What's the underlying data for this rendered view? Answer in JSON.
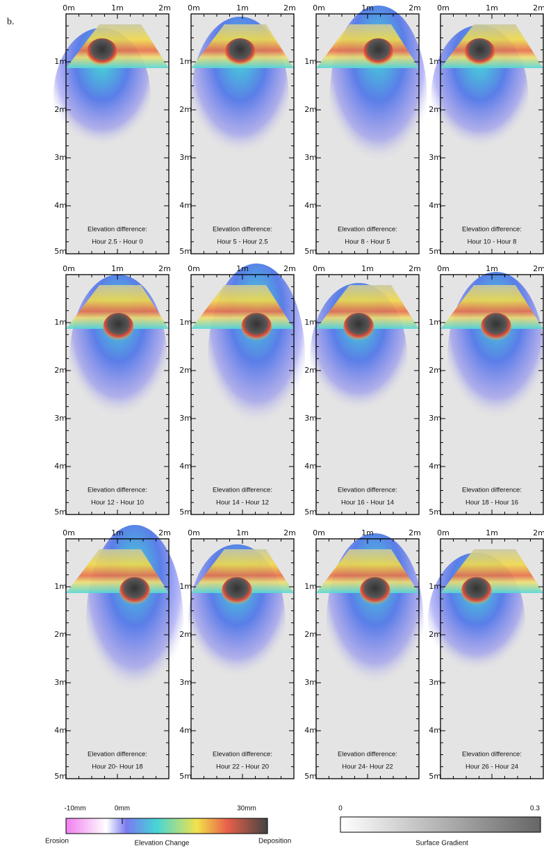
{
  "figure_label": "b.",
  "x_axis_labels": [
    "0m",
    "1m",
    "2m"
  ],
  "y_axis_labels": [
    "1m",
    "2m",
    "3m",
    "4m",
    "5m"
  ],
  "panels": [
    {
      "caption": "Elevation difference:",
      "interval": "Hour 2.5 - Hour 0"
    },
    {
      "caption": "Elevation difference:",
      "interval": "Hour 5 - Hour 2.5"
    },
    {
      "caption": "Elevation difference:",
      "interval": "Hour 8 - Hour 5"
    },
    {
      "caption": "Elevation difference:",
      "interval": "Hour 10 - Hour 8"
    },
    {
      "caption": "Elevation difference:",
      "interval": "Hour 12 - Hour 10"
    },
    {
      "caption": "Elevation difference:",
      "interval": "Hour 14 - Hour 12"
    },
    {
      "caption": "Elevation difference:",
      "interval": "Hour 16 - Hour 14"
    },
    {
      "caption": "Elevation difference:",
      "interval": "Hour 18 - Hour 16"
    },
    {
      "caption": "Elevation difference:",
      "interval": "Hour 20- Hour 18"
    },
    {
      "caption": "Elevation difference:",
      "interval": "Hour 22 - Hour 20"
    },
    {
      "caption": "Elevation difference:",
      "interval": "Hour 24- Hour 22"
    },
    {
      "caption": "Elevation difference:",
      "interval": "Hour 26 - Hour 24"
    }
  ],
  "elevation_legend": {
    "ticks": [
      "-10mm",
      "0mm",
      "30mm"
    ],
    "left_label": "Erosion",
    "title": "Elevation Change",
    "right_label": "Deposition"
  },
  "gradient_legend": {
    "ticks": [
      "0",
      "0.3"
    ],
    "title": "Surface Gradient"
  }
}
